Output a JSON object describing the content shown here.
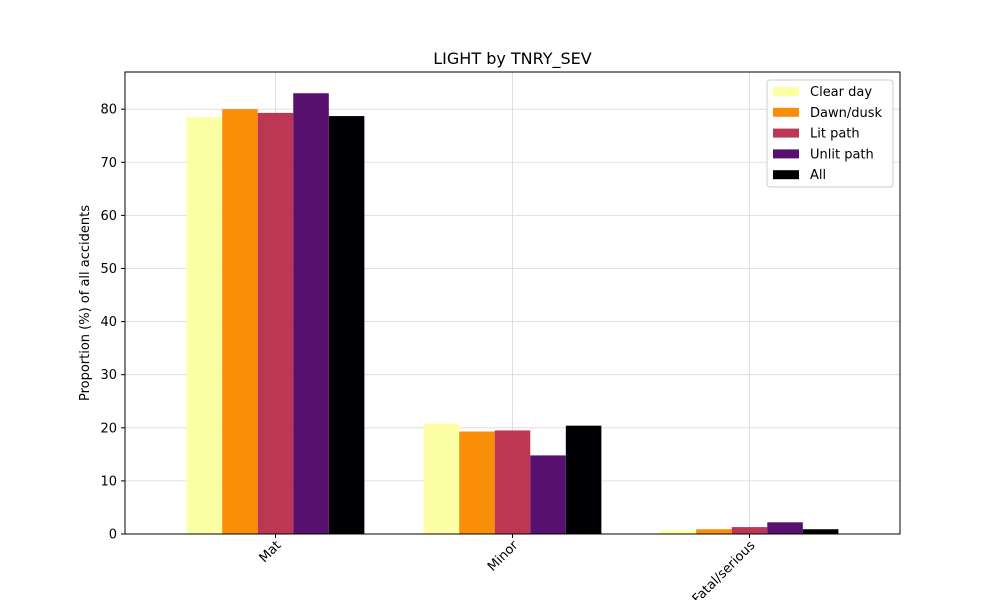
{
  "chart_data": {
    "type": "bar",
    "title": "LIGHT by TNRY_SEV",
    "xlabel": "",
    "ylabel": "Proportion (%) of all accidents",
    "categories": [
      "Mat",
      "Minor",
      "Fatal/serious"
    ],
    "ylim": [
      0,
      87
    ],
    "yticks": [
      0,
      10,
      20,
      30,
      40,
      50,
      60,
      70,
      80
    ],
    "grid": true,
    "legend_position": "top-right",
    "x_tick_rotation": 45,
    "series": [
      {
        "name": "Clear day",
        "color": "#fcffa4",
        "values": [
          78.5,
          20.8,
          0.7
        ]
      },
      {
        "name": "Dawn/dusk",
        "color": "#f98e09",
        "values": [
          80.0,
          19.3,
          0.9
        ]
      },
      {
        "name": "Lit path",
        "color": "#bc3754",
        "values": [
          79.3,
          19.5,
          1.3
        ]
      },
      {
        "name": "Unlit path",
        "color": "#57106e",
        "values": [
          83.0,
          14.8,
          2.2
        ]
      },
      {
        "name": "All",
        "color": "#000004",
        "values": [
          78.7,
          20.4,
          0.9
        ]
      }
    ]
  }
}
